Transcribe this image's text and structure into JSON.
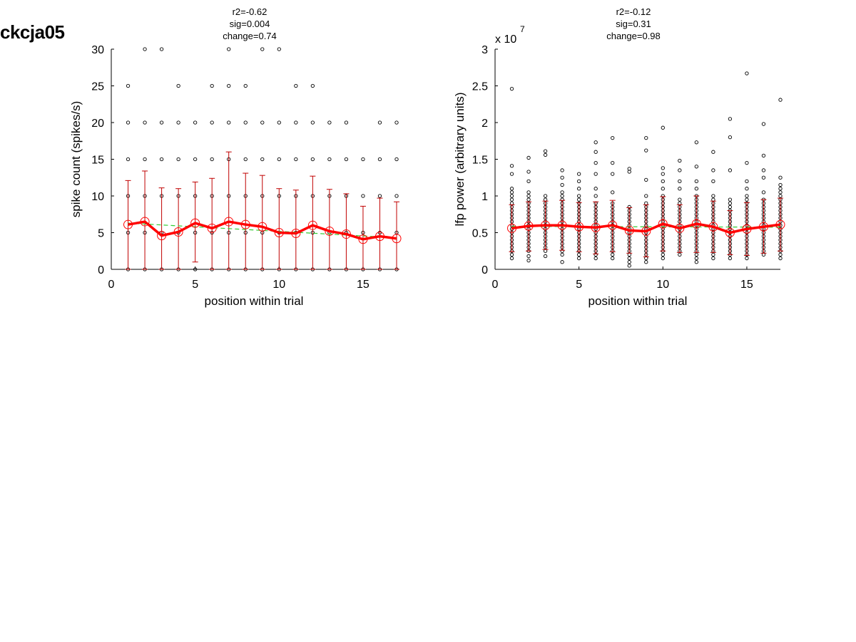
{
  "page": {
    "title": "ckcja05"
  },
  "colors": {
    "mean": "#ff0000",
    "errorbar": "#c00000",
    "fit": "#33cc33",
    "points": "#000000",
    "outline": "#cc0000"
  },
  "chart_data": [
    {
      "type": "scatter",
      "title_lines": [
        "r2=-0.62",
        "sig=0.004",
        "change=0.74"
      ],
      "xlabel": "position within trial",
      "ylabel": "spike count (spikes/s)",
      "xlim": [
        0,
        17
      ],
      "ylim": [
        0,
        30
      ],
      "xticks": [
        0,
        5,
        10,
        15
      ],
      "yticks": [
        0,
        5,
        10,
        15,
        20,
        25,
        30
      ],
      "ytick_labels": [
        "0",
        "5",
        "10",
        "15",
        "20",
        "25",
        "30"
      ],
      "exponent_label": "",
      "series": [
        {
          "role": "trial values (dots)",
          "points": [
            [
              1,
              [
                0,
                5,
                10,
                15,
                20,
                25
              ]
            ],
            [
              2,
              [
                0,
                5,
                10,
                15,
                20,
                30
              ]
            ],
            [
              3,
              [
                0,
                5,
                10,
                15,
                20,
                30
              ]
            ],
            [
              4,
              [
                0,
                5,
                10,
                15,
                20,
                25
              ]
            ],
            [
              5,
              [
                0,
                5,
                10,
                15,
                20
              ]
            ],
            [
              6,
              [
                0,
                5,
                10,
                15,
                20,
                25
              ]
            ],
            [
              7,
              [
                0,
                5,
                10,
                15,
                20,
                25,
                30
              ]
            ],
            [
              8,
              [
                0,
                5,
                10,
                15,
                20,
                25
              ]
            ],
            [
              9,
              [
                0,
                5,
                10,
                15,
                20,
                30
              ]
            ],
            [
              10,
              [
                0,
                5,
                10,
                15,
                20,
                30
              ]
            ],
            [
              11,
              [
                0,
                5,
                10,
                15,
                20,
                25
              ]
            ],
            [
              12,
              [
                0,
                5,
                10,
                15,
                20,
                25
              ]
            ],
            [
              13,
              [
                0,
                5,
                10,
                15,
                20
              ]
            ],
            [
              14,
              [
                0,
                5,
                10,
                15,
                20
              ]
            ],
            [
              15,
              [
                0,
                5,
                10,
                15
              ]
            ],
            [
              16,
              [
                0,
                5,
                10,
                15,
                20
              ]
            ],
            [
              17,
              [
                0,
                5,
                10,
                15,
                20
              ]
            ]
          ]
        },
        {
          "role": "mean",
          "x": [
            1,
            2,
            3,
            4,
            5,
            6,
            7,
            8,
            9,
            10,
            11,
            12,
            13,
            14,
            15,
            16,
            17
          ],
          "y": [
            6.1,
            6.5,
            4.6,
            5.1,
            6.3,
            5.6,
            6.5,
            6.1,
            5.8,
            5.0,
            4.9,
            6.0,
            5.2,
            4.8,
            4.1,
            4.5,
            4.2
          ],
          "err_low": [
            0,
            0,
            0,
            0,
            1,
            0,
            0,
            0,
            0,
            0,
            0,
            0,
            0,
            0,
            0,
            0,
            0
          ],
          "err_high": [
            12.1,
            13.4,
            11.1,
            11.0,
            11.9,
            12.4,
            16.0,
            13.1,
            12.8,
            11.0,
            10.8,
            12.7,
            10.9,
            10.3,
            8.6,
            9.7,
            9.2
          ]
        },
        {
          "role": "linear fit",
          "x": [
            1,
            17
          ],
          "y": [
            6.3,
            4.3
          ]
        }
      ]
    },
    {
      "type": "scatter",
      "title_lines": [
        "r2=-0.12",
        "sig=0.31",
        "change=0.98"
      ],
      "xlabel": "position within trial",
      "ylabel": "lfp power (arbitrary units)",
      "xlim": [
        0,
        17
      ],
      "ylim": [
        0,
        3
      ],
      "xticks": [
        0,
        5,
        10,
        15
      ],
      "yticks": [
        0,
        0.5,
        1,
        1.5,
        2,
        2.5,
        3
      ],
      "ytick_labels": [
        "0",
        "0.5",
        "1",
        "1.5",
        "2",
        "2.5",
        "3"
      ],
      "exponent_label": "x 10",
      "exponent_power": "7",
      "series": [
        {
          "role": "trial values (dots)",
          "points": [
            [
              1,
              [
                0.15,
                0.2,
                0.25,
                0.3,
                0.35,
                0.4,
                0.45,
                0.5,
                0.55,
                0.6,
                0.65,
                0.7,
                0.75,
                0.8,
                0.85,
                0.9,
                0.95,
                1.0,
                1.05,
                1.1,
                1.3,
                1.41,
                2.46
              ]
            ],
            [
              2,
              [
                0.12,
                0.18,
                0.25,
                0.3,
                0.35,
                0.4,
                0.45,
                0.5,
                0.55,
                0.6,
                0.65,
                0.7,
                0.75,
                0.8,
                0.85,
                0.9,
                0.95,
                1.0,
                1.05,
                1.2,
                1.33,
                1.52
              ]
            ],
            [
              3,
              [
                0.18,
                0.25,
                0.3,
                0.35,
                0.4,
                0.45,
                0.5,
                0.55,
                0.6,
                0.65,
                0.7,
                0.75,
                0.8,
                0.85,
                0.9,
                0.95,
                1.0,
                1.56,
                1.61
              ]
            ],
            [
              4,
              [
                0.1,
                0.2,
                0.25,
                0.3,
                0.35,
                0.4,
                0.45,
                0.5,
                0.55,
                0.6,
                0.65,
                0.7,
                0.75,
                0.8,
                0.85,
                0.9,
                0.95,
                1.0,
                1.05,
                1.15,
                1.25,
                1.35
              ]
            ],
            [
              5,
              [
                0.15,
                0.2,
                0.25,
                0.3,
                0.35,
                0.4,
                0.45,
                0.5,
                0.55,
                0.6,
                0.65,
                0.7,
                0.75,
                0.8,
                0.85,
                0.9,
                0.95,
                1.0,
                1.1,
                1.2,
                1.3
              ]
            ],
            [
              6,
              [
                0.15,
                0.2,
                0.25,
                0.3,
                0.35,
                0.4,
                0.45,
                0.5,
                0.55,
                0.6,
                0.65,
                0.7,
                0.75,
                0.8,
                0.85,
                0.9,
                1.0,
                1.1,
                1.3,
                1.45,
                1.6,
                1.73
              ]
            ],
            [
              7,
              [
                0.15,
                0.2,
                0.25,
                0.3,
                0.35,
                0.4,
                0.45,
                0.5,
                0.55,
                0.6,
                0.65,
                0.7,
                0.75,
                0.8,
                0.85,
                0.9,
                1.05,
                1.3,
                1.45,
                1.79
              ]
            ],
            [
              8,
              [
                0.05,
                0.1,
                0.15,
                0.2,
                0.25,
                0.3,
                0.35,
                0.4,
                0.45,
                0.5,
                0.55,
                0.6,
                0.65,
                0.7,
                0.75,
                0.8,
                0.85,
                1.33,
                1.37
              ]
            ],
            [
              9,
              [
                0.1,
                0.15,
                0.2,
                0.25,
                0.3,
                0.35,
                0.4,
                0.45,
                0.5,
                0.55,
                0.6,
                0.65,
                0.7,
                0.75,
                0.8,
                0.85,
                0.9,
                1.0,
                1.22,
                1.62,
                1.79
              ]
            ],
            [
              10,
              [
                0.15,
                0.2,
                0.25,
                0.3,
                0.35,
                0.4,
                0.45,
                0.5,
                0.55,
                0.6,
                0.65,
                0.7,
                0.75,
                0.8,
                0.85,
                0.9,
                0.95,
                1.0,
                1.1,
                1.2,
                1.3,
                1.38,
                1.93
              ]
            ],
            [
              11,
              [
                0.2,
                0.25,
                0.3,
                0.35,
                0.4,
                0.45,
                0.5,
                0.55,
                0.6,
                0.65,
                0.7,
                0.75,
                0.8,
                0.85,
                0.9,
                0.95,
                1.1,
                1.2,
                1.35,
                1.48
              ]
            ],
            [
              12,
              [
                0.1,
                0.15,
                0.2,
                0.25,
                0.3,
                0.35,
                0.4,
                0.45,
                0.5,
                0.55,
                0.6,
                0.65,
                0.7,
                0.75,
                0.8,
                0.85,
                0.9,
                0.95,
                1.0,
                1.1,
                1.2,
                1.4,
                1.73
              ]
            ],
            [
              13,
              [
                0.15,
                0.2,
                0.25,
                0.3,
                0.35,
                0.4,
                0.45,
                0.5,
                0.55,
                0.6,
                0.65,
                0.7,
                0.75,
                0.8,
                0.85,
                0.9,
                0.95,
                1.0,
                1.2,
                1.35,
                1.6
              ]
            ],
            [
              14,
              [
                0.15,
                0.2,
                0.25,
                0.3,
                0.35,
                0.4,
                0.45,
                0.5,
                0.55,
                0.6,
                0.65,
                0.7,
                0.75,
                0.8,
                0.85,
                0.9,
                0.95,
                1.35,
                1.8,
                2.05
              ]
            ],
            [
              15,
              [
                0.15,
                0.2,
                0.25,
                0.3,
                0.35,
                0.4,
                0.45,
                0.5,
                0.55,
                0.6,
                0.65,
                0.7,
                0.75,
                0.8,
                0.85,
                0.9,
                0.95,
                1.0,
                1.1,
                1.2,
                1.45,
                2.67
              ]
            ],
            [
              16,
              [
                0.2,
                0.25,
                0.3,
                0.35,
                0.4,
                0.45,
                0.5,
                0.55,
                0.6,
                0.65,
                0.7,
                0.75,
                0.8,
                0.85,
                0.9,
                0.95,
                1.05,
                1.25,
                1.35,
                1.55,
                1.98
              ]
            ],
            [
              17,
              [
                0.15,
                0.2,
                0.25,
                0.3,
                0.35,
                0.4,
                0.45,
                0.5,
                0.55,
                0.6,
                0.65,
                0.7,
                0.75,
                0.8,
                0.85,
                0.9,
                0.95,
                1.0,
                1.05,
                1.1,
                1.15,
                1.25,
                2.31
              ]
            ]
          ]
        },
        {
          "role": "mean",
          "x": [
            1,
            2,
            3,
            4,
            5,
            6,
            7,
            8,
            9,
            10,
            11,
            12,
            13,
            14,
            15,
            16,
            17
          ],
          "y": [
            0.56,
            0.59,
            0.6,
            0.6,
            0.58,
            0.57,
            0.6,
            0.53,
            0.52,
            0.62,
            0.56,
            0.62,
            0.58,
            0.5,
            0.55,
            0.58,
            0.61
          ],
          "err_low": [
            0.24,
            0.25,
            0.27,
            0.26,
            0.24,
            0.21,
            0.24,
            0.22,
            0.17,
            0.25,
            0.23,
            0.23,
            0.23,
            0.2,
            0.19,
            0.22,
            0.25
          ],
          "err_high": [
            0.88,
            0.92,
            0.93,
            0.94,
            0.91,
            0.92,
            0.94,
            0.84,
            0.88,
            0.99,
            0.88,
            1.0,
            0.93,
            0.8,
            0.91,
            0.95,
            0.97
          ]
        },
        {
          "role": "linear fit",
          "x": [
            1,
            17
          ],
          "y": [
            0.585,
            0.575
          ]
        }
      ]
    }
  ]
}
